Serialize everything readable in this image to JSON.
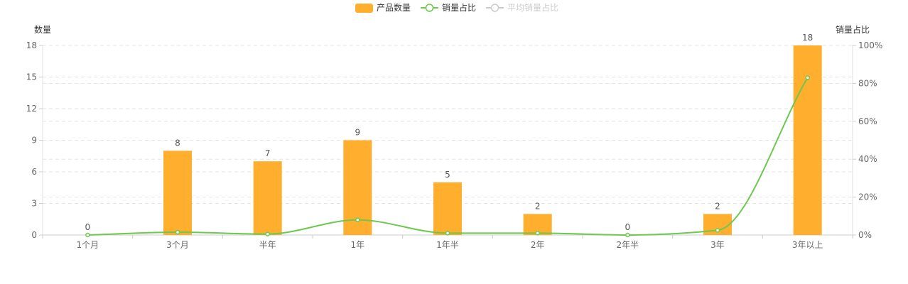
{
  "chart_data": {
    "type": "bar",
    "categories": [
      "1个月",
      "3个月",
      "半年",
      "1年",
      "1年半",
      "2年",
      "2年半",
      "3年",
      "3年以上"
    ],
    "legend": [
      {
        "name": "产品数量",
        "kind": "bar",
        "color": "#FFAE2E",
        "active": true
      },
      {
        "name": "销量占比",
        "kind": "line",
        "color": "#6CC94E",
        "active": true
      },
      {
        "name": "平均销量占比",
        "kind": "line",
        "color": "#CCCCCC",
        "active": false
      }
    ],
    "legend_position": "top-center",
    "series": [
      {
        "name": "产品数量",
        "type": "bar",
        "axis": "left",
        "values": [
          0,
          8,
          7,
          9,
          5,
          2,
          0,
          2,
          18
        ],
        "color": "#FFAE2E"
      },
      {
        "name": "销量占比",
        "type": "line",
        "axis": "right",
        "smooth": true,
        "values": [
          0,
          1.5,
          0.5,
          8,
          1,
          1,
          0,
          2.5,
          83
        ],
        "color": "#6CC94E"
      }
    ],
    "y_left": {
      "label": "数量",
      "ylim": [
        0,
        18
      ],
      "ticks": [
        0,
        3,
        6,
        9,
        12,
        15,
        18
      ],
      "tick_labels": [
        "0",
        "3",
        "6",
        "9",
        "12",
        "15",
        "18"
      ]
    },
    "y_right": {
      "label": "销量占比",
      "ylim": [
        0,
        100
      ],
      "ticks": [
        0,
        20,
        40,
        60,
        80,
        100
      ],
      "tick_labels": [
        "0%",
        "20%",
        "40%",
        "60%",
        "80%",
        "100%"
      ]
    },
    "grid": "dashed-horizontal"
  }
}
